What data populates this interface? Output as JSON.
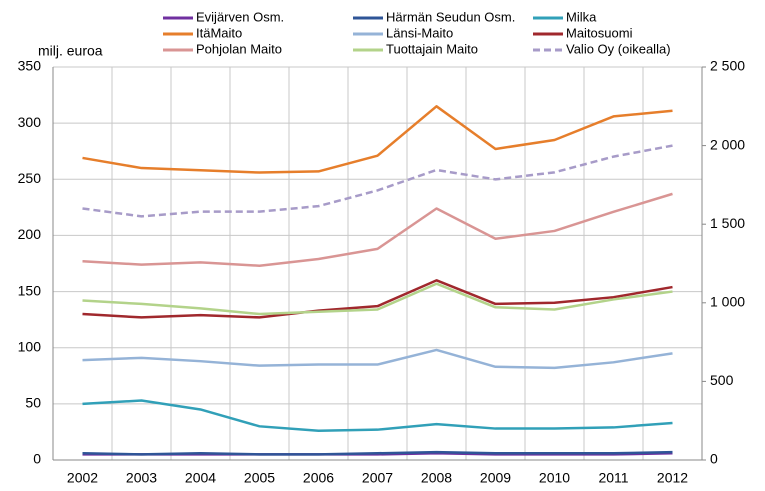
{
  "chart_data": {
    "type": "line",
    "y_label": "milj. euroa",
    "categories": [
      "2002",
      "2003",
      "2004",
      "2005",
      "2006",
      "2007",
      "2008",
      "2009",
      "2010",
      "2011",
      "2012"
    ],
    "ylim": [
      0,
      350
    ],
    "yticks": [
      0,
      50,
      100,
      150,
      200,
      250,
      300,
      350
    ],
    "y2lim": [
      0,
      2500
    ],
    "y2ticks": [
      0,
      500,
      {
        "value": 1000,
        "label": "1 000"
      },
      {
        "value": 1500,
        "label": "1 500"
      },
      {
        "value": 2000,
        "label": "2 000"
      },
      {
        "value": 2500,
        "label": "2 500"
      }
    ],
    "grid": true,
    "series": [
      {
        "name": "Evijärven Osm.",
        "color": "#7030a0",
        "values": [
          5,
          5,
          5,
          5,
          5,
          5,
          6,
          5,
          5,
          5,
          6
        ]
      },
      {
        "name": "Härmän Seudun Osm.",
        "color": "#2f5597",
        "values": [
          6,
          5,
          6,
          5,
          5,
          6,
          7,
          6,
          6,
          6,
          7
        ]
      },
      {
        "name": "Milka",
        "color": "#31a0b8",
        "values": [
          50,
          53,
          45,
          30,
          26,
          27,
          32,
          28,
          28,
          29,
          33
        ]
      },
      {
        "name": "ItäMaito",
        "color": "#e67e2b",
        "values": [
          269,
          260,
          258,
          256,
          257,
          271,
          315,
          277,
          285,
          306,
          311
        ]
      },
      {
        "name": "Länsi-Maito",
        "color": "#95b3d7",
        "values": [
          89,
          91,
          88,
          84,
          85,
          85,
          98,
          83,
          82,
          87,
          95
        ]
      },
      {
        "name": "Maitosuomi",
        "color": "#a0282d",
        "values": [
          130,
          127,
          129,
          127,
          133,
          137,
          160,
          139,
          140,
          145,
          154
        ]
      },
      {
        "name": "Pohjolan Maito",
        "color": "#d99594",
        "values": [
          177,
          174,
          176,
          173,
          179,
          188,
          224,
          197,
          204,
          221,
          237
        ]
      },
      {
        "name": "Tuottajain Maito",
        "color": "#b3d38a",
        "values": [
          142,
          139,
          135,
          130,
          132,
          134,
          157,
          136,
          134,
          143,
          150
        ]
      },
      {
        "name": "Valio Oy (oikealla)",
        "color": "#a79bc8",
        "dashed": true,
        "axis": "y2",
        "values": [
          1600,
          1550,
          1580,
          1580,
          1615,
          1715,
          1845,
          1785,
          1830,
          1930,
          2000
        ]
      }
    ]
  }
}
